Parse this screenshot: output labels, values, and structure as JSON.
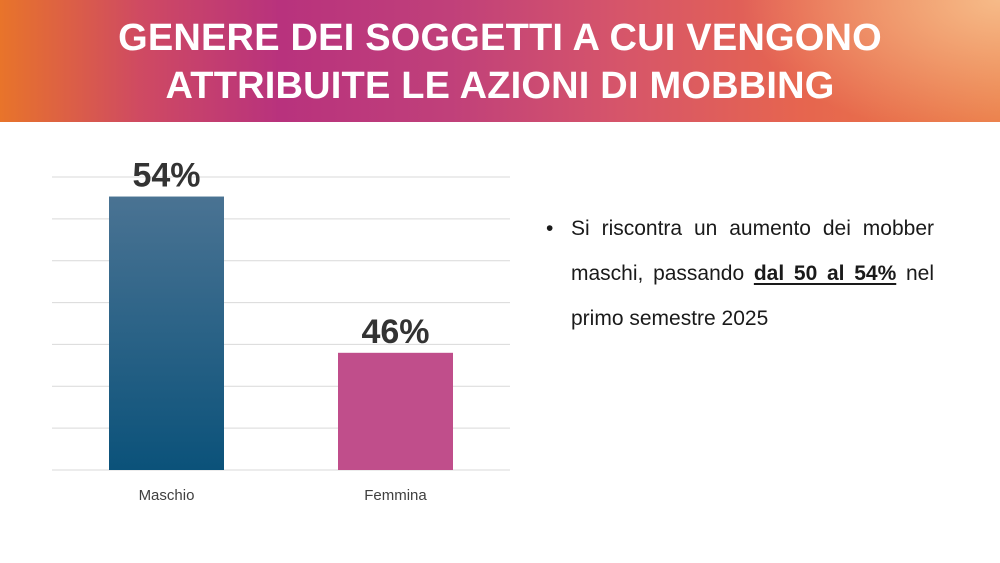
{
  "header": {
    "title_line1": "GENERE DEI SOGGETTI A CUI VENGONO",
    "title_line2": "ATTRIBUITE LE AZIONI DI MOBBING"
  },
  "colors": {
    "maschio_top": "#4a7393",
    "maschio_bottom": "#0b527a",
    "femmina": "#c04e8b",
    "gridline": "#d9d9d9",
    "label_text": "#333333"
  },
  "chart_data": {
    "type": "bar",
    "categories": [
      "Maschio",
      "Femmina"
    ],
    "values": [
      54,
      46
    ],
    "data_labels": [
      "54%",
      "46%"
    ],
    "ylim": [
      40,
      55
    ],
    "grid": true,
    "title": "",
    "xlabel": "",
    "ylabel": ""
  },
  "bullet": {
    "symbol": "•",
    "text_before": "Si riscontra un aumento dei mobber maschi, passando ",
    "highlight": "dal 50 al 54%",
    "text_after": " nel primo semestre 2025"
  }
}
